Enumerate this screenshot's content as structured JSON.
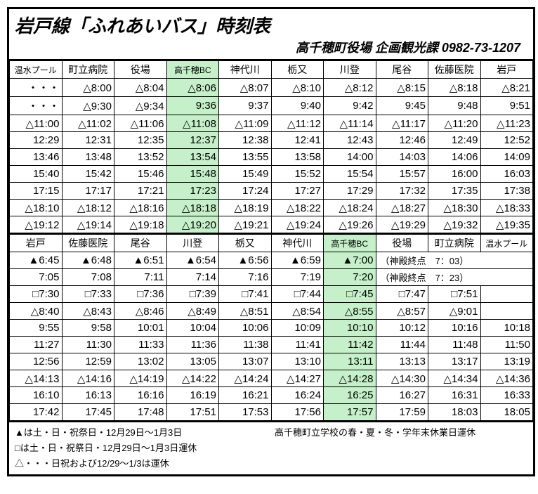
{
  "header": {
    "title": "岩戸線「ふれあいバス」時刻表",
    "subtitle": "高千穂町役場 企画観光課 0982-73-1207"
  },
  "colors": {
    "highlight": "#c5f0c9",
    "border": "#000000",
    "background": "#ffffff"
  },
  "table1": {
    "headers": [
      "温水プール",
      "町立病院",
      "役場",
      "高千穂BC",
      "神代川",
      "栃又",
      "川登",
      "尾谷",
      "佐藤医院",
      "岩戸"
    ],
    "highlight_col": 3,
    "rows": [
      [
        "・・・",
        "△8:00",
        "△8:04",
        "△8:06",
        "△8:07",
        "△8:10",
        "△8:12",
        "△8:15",
        "△8:18",
        "△8:21"
      ],
      [
        "・・・",
        "△9:30",
        "△9:34",
        "9:36",
        "9:37",
        "9:40",
        "9:42",
        "9:45",
        "9:48",
        "9:51"
      ],
      [
        "△11:00",
        "△11:02",
        "△11:06",
        "△11:08",
        "△11:09",
        "△11:12",
        "△11:14",
        "△11:17",
        "△11:20",
        "△11:23"
      ],
      [
        "12:29",
        "12:31",
        "12:35",
        "12:37",
        "12:38",
        "12:41",
        "12:43",
        "12:46",
        "12:49",
        "12:52"
      ],
      [
        "13:46",
        "13:48",
        "13:52",
        "13:54",
        "13:55",
        "13:58",
        "14:00",
        "14:03",
        "14:06",
        "14:09"
      ],
      [
        "15:40",
        "15:42",
        "15:46",
        "15:48",
        "15:49",
        "15:52",
        "15:54",
        "15:57",
        "16:00",
        "16:03"
      ],
      [
        "17:15",
        "17:17",
        "17:21",
        "17:23",
        "17:24",
        "17:27",
        "17:29",
        "17:32",
        "17:35",
        "17:38"
      ],
      [
        "△18:10",
        "△18:12",
        "△18:16",
        "△18:18",
        "△18:19",
        "△18:22",
        "△18:24",
        "△18:27",
        "△18:30",
        "△18:33"
      ],
      [
        "△19:12",
        "△19:14",
        "△19:18",
        "△19:20",
        "△19:21",
        "△19:24",
        "△19:26",
        "△19:29",
        "△19:32",
        "△19:35"
      ]
    ]
  },
  "table2": {
    "headers": [
      "岩戸",
      "佐藤医院",
      "尾谷",
      "川登",
      "栃又",
      "神代川",
      "高千穂BC",
      "役場",
      "町立病院",
      "温水プール"
    ],
    "highlight_col": 6,
    "rows": [
      {
        "cells": [
          "▲6:45",
          "▲6:48",
          "▲6:51",
          "▲6:54",
          "▲6:56",
          "▲6:59",
          "▲7:00"
        ],
        "note": "（神殿終点　7：03）"
      },
      {
        "cells": [
          "7:05",
          "7:08",
          "7:11",
          "7:14",
          "7:16",
          "7:19",
          "7:20"
        ],
        "note": "（神殿終点　7：23）"
      },
      {
        "cells": [
          "□7:30",
          "□7:33",
          "□7:36",
          "□7:39",
          "□7:41",
          "□7:44",
          "□7:45",
          "□7:47",
          "□7:51",
          ""
        ]
      },
      {
        "cells": [
          "△8:40",
          "△8:43",
          "△8:46",
          "△8:49",
          "△8:51",
          "△8:54",
          "△8:55",
          "△8:57",
          "△9:01",
          ""
        ]
      },
      {
        "cells": [
          "9:55",
          "9:58",
          "10:01",
          "10:04",
          "10:06",
          "10:09",
          "10:10",
          "10:12",
          "10:16",
          "10:18"
        ]
      },
      {
        "cells": [
          "11:27",
          "11:30",
          "11:33",
          "11:36",
          "11:38",
          "11:41",
          "11:42",
          "11:44",
          "11:48",
          "11:50"
        ]
      },
      {
        "cells": [
          "12:56",
          "12:59",
          "13:02",
          "13:05",
          "13:07",
          "13:10",
          "13:11",
          "13:13",
          "13:17",
          "13:19"
        ]
      },
      {
        "cells": [
          "△14:13",
          "△14:16",
          "△14:19",
          "△14:22",
          "△14:24",
          "△14:27",
          "△14:28",
          "△14:30",
          "△14:34",
          "△14:36"
        ]
      },
      {
        "cells": [
          "16:10",
          "16:13",
          "16:16",
          "16:19",
          "16:21",
          "16:24",
          "16:25",
          "16:27",
          "16:31",
          "16:33"
        ]
      },
      {
        "cells": [
          "17:42",
          "17:45",
          "17:48",
          "17:51",
          "17:53",
          "17:56",
          "17:57",
          "17:59",
          "18:03",
          "18:05"
        ]
      }
    ]
  },
  "legend": {
    "line1a": "▲は土・日・祝祭日・12月29日～1月3日",
    "line1b": "高千穂町立学校の春・夏・冬・学年末休業日運休",
    "line2": "□は土・日・祝祭日・12月29日～1月3日運休",
    "line3": "△・・・日祝および12/29～1/3は運休"
  }
}
